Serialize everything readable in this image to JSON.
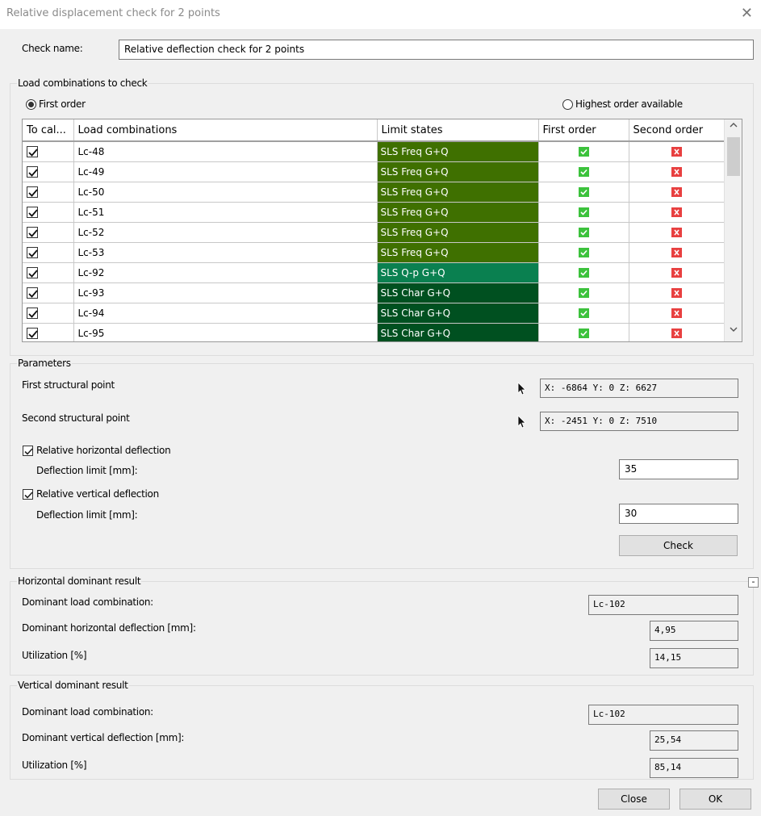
{
  "window": {
    "title": "Relative displacement check for 2 points",
    "close_glyph": "✕"
  },
  "check_name": {
    "label": "Check name:",
    "value": "Relative deflection check for 2 points"
  },
  "load_group": {
    "title": "Load combinations to check",
    "radio_first": "First order",
    "radio_highest": "Highest order available",
    "selected": "First order",
    "columns": [
      "To cal...",
      "Load combinations",
      "Limit states",
      "First order",
      "Second order"
    ],
    "rows": [
      {
        "checked": true,
        "combination": "Lc-48",
        "limit_state": "SLS Freq G+Q",
        "color": "#3f7000",
        "first": true,
        "second": false
      },
      {
        "checked": true,
        "combination": "Lc-49",
        "limit_state": "SLS Freq G+Q",
        "color": "#3f7000",
        "first": true,
        "second": false
      },
      {
        "checked": true,
        "combination": "Lc-50",
        "limit_state": "SLS Freq G+Q",
        "color": "#3f7000",
        "first": true,
        "second": false
      },
      {
        "checked": true,
        "combination": "Lc-51",
        "limit_state": "SLS Freq G+Q",
        "color": "#3f7000",
        "first": true,
        "second": false
      },
      {
        "checked": true,
        "combination": "Lc-52",
        "limit_state": "SLS Freq G+Q",
        "color": "#3f7000",
        "first": true,
        "second": false
      },
      {
        "checked": true,
        "combination": "Lc-53",
        "limit_state": "SLS Freq G+Q",
        "color": "#3f7000",
        "first": true,
        "second": false
      },
      {
        "checked": true,
        "combination": "Lc-92",
        "limit_state": "SLS Q-p G+Q",
        "color": "#0a8050",
        "first": true,
        "second": false
      },
      {
        "checked": true,
        "combination": "Lc-93",
        "limit_state": "SLS Char G+Q",
        "color": "#005020",
        "first": true,
        "second": false
      },
      {
        "checked": true,
        "combination": "Lc-94",
        "limit_state": "SLS Char G+Q",
        "color": "#005020",
        "first": true,
        "second": false
      },
      {
        "checked": true,
        "combination": "Lc-95",
        "limit_state": "SLS Char G+Q",
        "color": "#005020",
        "first": true,
        "second": false
      }
    ],
    "scroll_up": "^",
    "scroll_down": "v"
  },
  "parameters": {
    "title": "Parameters",
    "first_point_label": "First structural point",
    "first_point_value": "X: -6864  Y: 0  Z: 6627",
    "second_point_label": "Second structural point",
    "second_point_value": "X: -2451  Y: 0  Z: 7510",
    "horizontal_label": "Relative horizontal deflection",
    "horizontal_checked": true,
    "horizontal_limit_label": "Deflection limit [mm]:",
    "horizontal_limit_value": "35",
    "vertical_label": "Relative vertical deflection",
    "vertical_checked": true,
    "vertical_limit_label": "Deflection limit [mm]:",
    "vertical_limit_value": "30",
    "check_button": "Check"
  },
  "horizontal_result": {
    "title": "Horizontal dominant result",
    "collapse_glyph": "-",
    "combo_label": "Dominant load combination:",
    "combo_value": "Lc-102",
    "deflection_label": "Dominant horizontal deflection [mm]:",
    "deflection_value": "4,95",
    "utilization_label": "Utilization [%]",
    "utilization_value": "14,15"
  },
  "vertical_result": {
    "title": "Vertical dominant result",
    "combo_label": "Dominant load combination:",
    "combo_value": "Lc-102",
    "deflection_label": "Dominant vertical deflection [mm]:",
    "deflection_value": "25,54",
    "utilization_label": "Utilization [%]",
    "utilization_value": "85,14"
  },
  "footer": {
    "close_button": "Close",
    "ok_button": "OK"
  },
  "colors": {
    "ok": "#3cc23c",
    "fail": "#e84040",
    "dialog_bg": "#f0f0f0"
  }
}
